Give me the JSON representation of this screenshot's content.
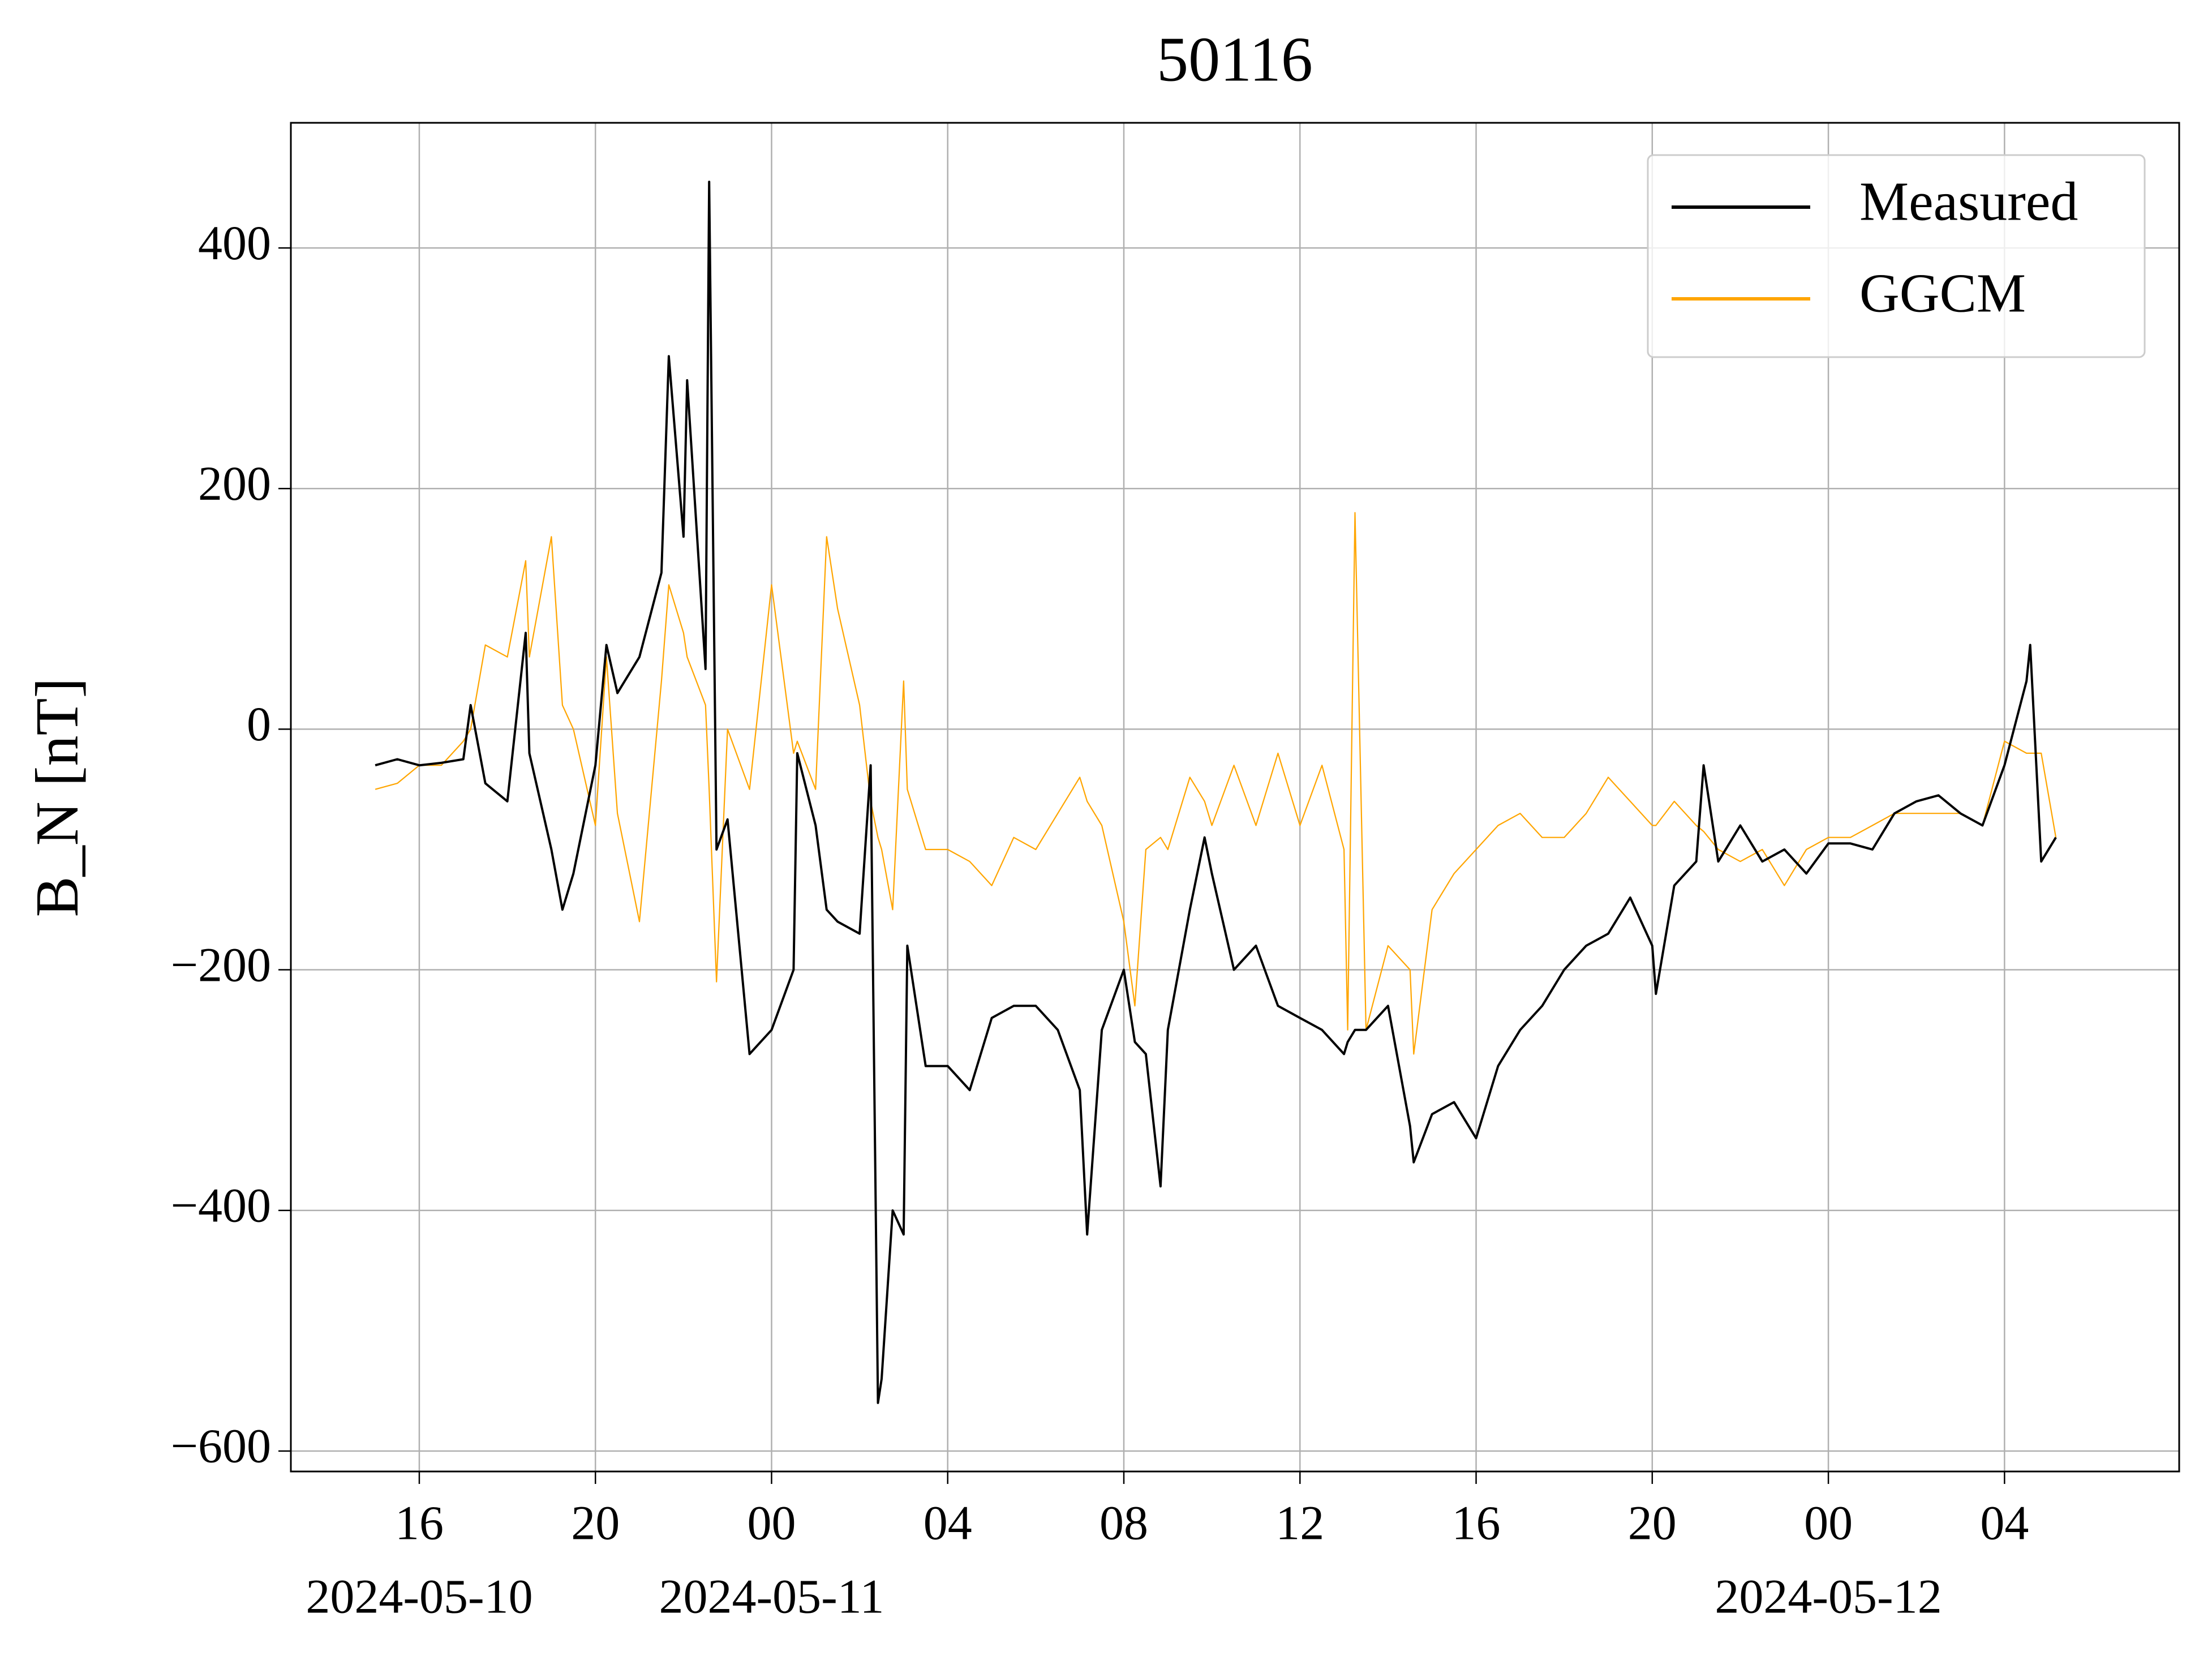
{
  "chart_data": {
    "type": "line",
    "title": "50116",
    "y_label": "B_N [nT]",
    "x": [
      "2024-05-10 15:00",
      "2024-05-10 15:30",
      "2024-05-10 16:00",
      "2024-05-10 16:30",
      "2024-05-10 17:00",
      "2024-05-10 17:10",
      "2024-05-10 17:30",
      "2024-05-10 18:00",
      "2024-05-10 18:25",
      "2024-05-10 18:30",
      "2024-05-10 19:00",
      "2024-05-10 19:15",
      "2024-05-10 19:30",
      "2024-05-10 20:00",
      "2024-05-10 20:15",
      "2024-05-10 20:30",
      "2024-05-10 21:00",
      "2024-05-10 21:30",
      "2024-05-10 21:40",
      "2024-05-10 22:00",
      "2024-05-10 22:05",
      "2024-05-10 22:30",
      "2024-05-10 22:35",
      "2024-05-10 22:45",
      "2024-05-10 23:00",
      "2024-05-10 23:30",
      "2024-05-11 00:00",
      "2024-05-11 00:30",
      "2024-05-11 00:35",
      "2024-05-11 01:00",
      "2024-05-11 01:15",
      "2024-05-11 01:30",
      "2024-05-11 02:00",
      "2024-05-11 02:15",
      "2024-05-11 02:25",
      "2024-05-11 02:30",
      "2024-05-11 02:45",
      "2024-05-11 03:00",
      "2024-05-11 03:05",
      "2024-05-11 03:30",
      "2024-05-11 04:00",
      "2024-05-11 04:30",
      "2024-05-11 05:00",
      "2024-05-11 05:30",
      "2024-05-11 06:00",
      "2024-05-11 06:30",
      "2024-05-11 07:00",
      "2024-05-11 07:10",
      "2024-05-11 07:30",
      "2024-05-11 08:00",
      "2024-05-11 08:15",
      "2024-05-11 08:30",
      "2024-05-11 08:50",
      "2024-05-11 09:00",
      "2024-05-11 09:30",
      "2024-05-11 09:50",
      "2024-05-11 10:00",
      "2024-05-11 10:30",
      "2024-05-11 11:00",
      "2024-05-11 11:30",
      "2024-05-11 12:00",
      "2024-05-11 12:30",
      "2024-05-11 13:00",
      "2024-05-11 13:05",
      "2024-05-11 13:15",
      "2024-05-11 13:30",
      "2024-05-11 14:00",
      "2024-05-11 14:30",
      "2024-05-11 14:35",
      "2024-05-11 15:00",
      "2024-05-11 15:30",
      "2024-05-11 16:00",
      "2024-05-11 16:30",
      "2024-05-11 17:00",
      "2024-05-11 17:30",
      "2024-05-11 18:00",
      "2024-05-11 18:30",
      "2024-05-11 19:00",
      "2024-05-11 19:30",
      "2024-05-11 20:00",
      "2024-05-11 20:05",
      "2024-05-11 20:30",
      "2024-05-11 21:00",
      "2024-05-11 21:10",
      "2024-05-11 21:30",
      "2024-05-11 22:00",
      "2024-05-11 22:30",
      "2024-05-11 23:00",
      "2024-05-11 23:30",
      "2024-05-12 00:00",
      "2024-05-12 00:30",
      "2024-05-12 01:00",
      "2024-05-12 01:30",
      "2024-05-12 02:00",
      "2024-05-12 02:30",
      "2024-05-12 03:00",
      "2024-05-12 03:30",
      "2024-05-12 04:00",
      "2024-05-12 04:30",
      "2024-05-12 04:35",
      "2024-05-12 04:50",
      "2024-05-12 05:10"
    ],
    "series": [
      {
        "name": "Measured",
        "color": "#000000",
        "values": [
          -30,
          -25,
          -30,
          -28,
          -25,
          20,
          -45,
          -60,
          80,
          -20,
          -100,
          -150,
          -120,
          -30,
          70,
          30,
          60,
          130,
          310,
          160,
          290,
          50,
          455,
          -100,
          -75,
          -270,
          -250,
          -200,
          -20,
          -80,
          -150,
          -160,
          -170,
          -30,
          -560,
          -540,
          -400,
          -420,
          -180,
          -280,
          -280,
          -300,
          -240,
          -230,
          -230,
          -250,
          -300,
          -420,
          -250,
          -200,
          -260,
          -270,
          -380,
          -250,
          -150,
          -90,
          -120,
          -200,
          -180,
          -230,
          -240,
          -250,
          -270,
          -260,
          -250,
          -250,
          -230,
          -330,
          -360,
          -320,
          -310,
          -340,
          -280,
          -250,
          -230,
          -200,
          -180,
          -170,
          -140,
          -180,
          -220,
          -130,
          -110,
          -30,
          -110,
          -80,
          -110,
          -100,
          -120,
          -95,
          -95,
          -100,
          -70,
          -60,
          -55,
          -70,
          -80,
          -30,
          40,
          70,
          -110,
          -90
        ]
      },
      {
        "name": "GGCM",
        "color": "#ffa500",
        "values": [
          -50,
          -45,
          -30,
          -30,
          -10,
          0,
          70,
          60,
          140,
          60,
          160,
          20,
          0,
          -80,
          60,
          -70,
          -160,
          40,
          120,
          80,
          60,
          20,
          -50,
          -210,
          0,
          -50,
          120,
          -20,
          -10,
          -50,
          160,
          100,
          20,
          -60,
          -90,
          -100,
          -150,
          40,
          -50,
          -100,
          -100,
          -110,
          -130,
          -90,
          -100,
          -70,
          -40,
          -60,
          -80,
          -160,
          -230,
          -100,
          -90,
          -100,
          -40,
          -60,
          -80,
          -30,
          -80,
          -20,
          -80,
          -30,
          -100,
          -250,
          180,
          -250,
          -180,
          -200,
          -270,
          -150,
          -120,
          -100,
          -80,
          -70,
          -90,
          -90,
          -70,
          -40,
          -60,
          -80,
          -80,
          -60,
          -80,
          -85,
          -100,
          -110,
          -100,
          -130,
          -100,
          -90,
          -90,
          -80,
          -70,
          -70,
          -70,
          -70,
          -80,
          -10,
          -20,
          -20,
          -20,
          -90
        ]
      }
    ],
    "xlim": [
      "2024-05-10 13:05",
      "2024-05-12 07:58"
    ],
    "xticks": [
      {
        "value": "2024-05-10 16:00",
        "label": "16"
      },
      {
        "value": "2024-05-10 20:00",
        "label": "20"
      },
      {
        "value": "2024-05-11 00:00",
        "label": "00"
      },
      {
        "value": "2024-05-11 04:00",
        "label": "04"
      },
      {
        "value": "2024-05-11 08:00",
        "label": "08"
      },
      {
        "value": "2024-05-11 12:00",
        "label": "12"
      },
      {
        "value": "2024-05-11 16:00",
        "label": "16"
      },
      {
        "value": "2024-05-11 20:00",
        "label": "20"
      },
      {
        "value": "2024-05-12 00:00",
        "label": "00"
      },
      {
        "value": "2024-05-12 04:00",
        "label": "04"
      }
    ],
    "xdate_labels": [
      {
        "value": "2024-05-10 16:00",
        "label": "2024-05-10"
      },
      {
        "value": "2024-05-11 00:00",
        "label": "2024-05-11"
      },
      {
        "value": "2024-05-12 00:00",
        "label": "2024-05-12"
      }
    ],
    "ylim": [
      -617,
      504
    ],
    "yticks": [
      {
        "value": -600,
        "label": "−600"
      },
      {
        "value": -400,
        "label": "−400"
      },
      {
        "value": -200,
        "label": "−200"
      },
      0,
      200,
      400
    ],
    "grid": true,
    "legend": "upper right"
  }
}
